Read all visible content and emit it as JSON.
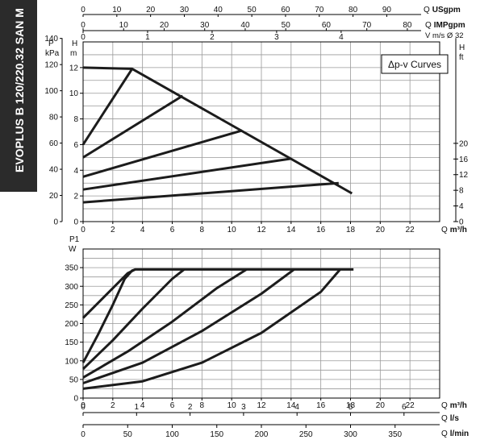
{
  "chart_data": [
    {
      "type": "line",
      "title": "Δp-v Curves",
      "side_label": "EVOPLUS B 120/220.32 SAN M",
      "x_label": "Q m³/h",
      "x_ticks": [
        0,
        2,
        4,
        6,
        8,
        10,
        12,
        14,
        16,
        18,
        20,
        22
      ],
      "xlim": [
        0,
        24
      ],
      "y_left_label": "H m",
      "y_left_ticks": [
        0,
        2,
        4,
        6,
        8,
        10,
        12
      ],
      "ylim": [
        0,
        14
      ],
      "y_kpa_label": "P kPa",
      "y_kpa_ticks": [
        0,
        20,
        40,
        60,
        80,
        100,
        120,
        140
      ],
      "y_right_label": "H ft",
      "y_right_ticks": [
        0,
        4,
        8,
        12,
        16,
        20
      ],
      "top_axes": [
        {
          "label": "Q USgpm",
          "ticks": [
            0,
            10,
            20,
            30,
            40,
            50,
            60,
            70,
            80,
            90
          ]
        },
        {
          "label": "Q IMPgpm",
          "ticks": [
            0,
            10,
            20,
            30,
            40,
            50,
            60,
            70,
            80
          ]
        },
        {
          "label": "V m/s Ø 32",
          "ticks": [
            0,
            1,
            2,
            3,
            4
          ]
        }
      ],
      "series": [
        {
          "x": [
            0,
            3.3,
            18.1
          ],
          "y": [
            12,
            11.9,
            2.2
          ]
        },
        {
          "x": [
            0,
            3.3
          ],
          "y": [
            6,
            11.9
          ]
        },
        {
          "x": [
            0,
            6.7
          ],
          "y": [
            5,
            9.8
          ]
        },
        {
          "x": [
            0,
            10.7
          ],
          "y": [
            3.5,
            7.1
          ]
        },
        {
          "x": [
            0,
            14.0
          ],
          "y": [
            2.5,
            4.9
          ]
        },
        {
          "x": [
            0,
            17.2
          ],
          "y": [
            1.5,
            3.0
          ]
        }
      ]
    },
    {
      "type": "line",
      "x_label": "Q m³/h",
      "x_ticks": [
        0,
        2,
        4,
        6,
        8,
        10,
        12,
        14,
        16,
        18,
        20,
        22
      ],
      "xlim": [
        0,
        24
      ],
      "y_label": "P1 W",
      "y_ticks": [
        0,
        50,
        100,
        150,
        200,
        250,
        300,
        350
      ],
      "ylim": [
        0,
        400
      ],
      "bottom_axes": [
        {
          "label": "Q l/s",
          "ticks": [
            0,
            1,
            2,
            3,
            4,
            5,
            6
          ]
        },
        {
          "label": "Q l/min",
          "ticks": [
            0,
            50,
            100,
            150,
            200,
            250,
            300,
            350
          ]
        }
      ],
      "series": [
        {
          "x": [
            0,
            3.0,
            3.5,
            18.2
          ],
          "y": [
            215,
            335,
            345,
            345
          ]
        },
        {
          "x": [
            0,
            1.0,
            2.0,
            2.8,
            3.3,
            3.5
          ],
          "y": [
            95,
            170,
            250,
            320,
            342,
            345
          ]
        },
        {
          "x": [
            0,
            2,
            4,
            6,
            6.8
          ],
          "y": [
            78,
            155,
            240,
            320,
            345
          ]
        },
        {
          "x": [
            0,
            3,
            6,
            9,
            11.0
          ],
          "y": [
            55,
            125,
            205,
            295,
            345
          ]
        },
        {
          "x": [
            0,
            4,
            8,
            12,
            14.2
          ],
          "y": [
            40,
            95,
            180,
            280,
            345
          ]
        },
        {
          "x": [
            0,
            4,
            8,
            12,
            16,
            17.3
          ],
          "y": [
            25,
            45,
            95,
            175,
            285,
            345
          ]
        }
      ]
    }
  ]
}
